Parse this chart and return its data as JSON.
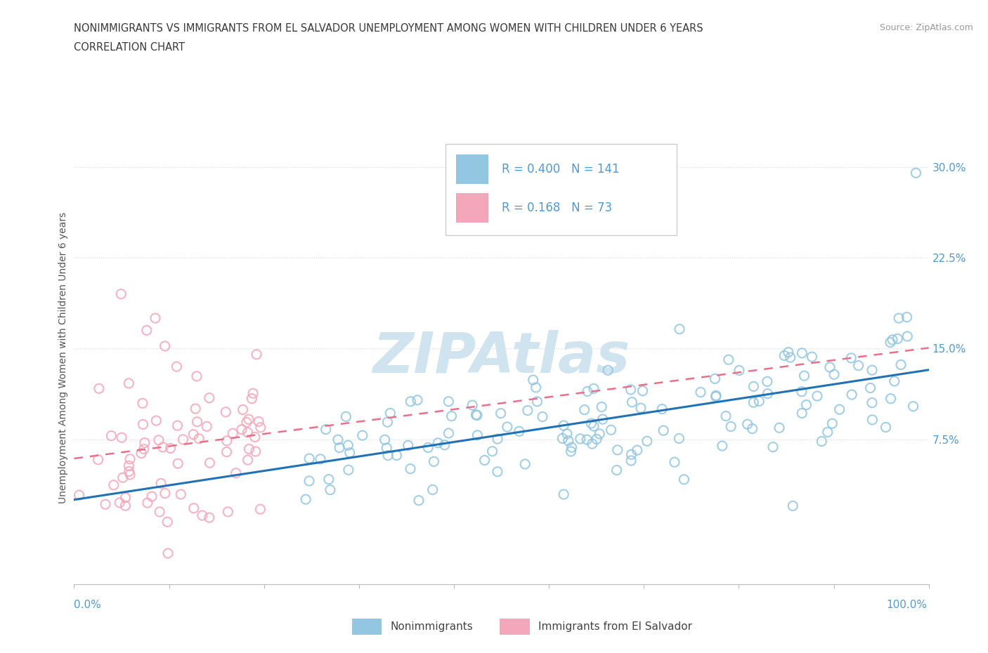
{
  "title_line1": "NONIMMIGRANTS VS IMMIGRANTS FROM EL SALVADOR UNEMPLOYMENT AMONG WOMEN WITH CHILDREN UNDER 6 YEARS",
  "title_line2": "CORRELATION CHART",
  "source": "Source: ZipAtlas.com",
  "ylabel": "Unemployment Among Women with Children Under 6 years",
  "xlim": [
    0.0,
    1.0
  ],
  "ylim": [
    -0.045,
    0.33
  ],
  "nonimm_R": 0.4,
  "nonimm_N": 141,
  "imm_R": 0.168,
  "imm_N": 73,
  "nonimm_color": "#93c6e0",
  "nonimm_edge": "#7ab3cf",
  "imm_color": "#f4a7bb",
  "imm_edge": "#e890a8",
  "nonimm_line_color": "#2171b5",
  "imm_line_color": "#e8708a",
  "background_color": "#ffffff",
  "grid_color": "#d8d8d8",
  "title_color": "#3a3a3a",
  "watermark_color": "#d0e4f0",
  "ytick_vals": [
    0.075,
    0.15,
    0.225,
    0.3
  ],
  "ytick_labels": [
    "7.5%",
    "15.0%",
    "22.5%",
    "30.0%"
  ],
  "ytick_color": "#5599cc"
}
